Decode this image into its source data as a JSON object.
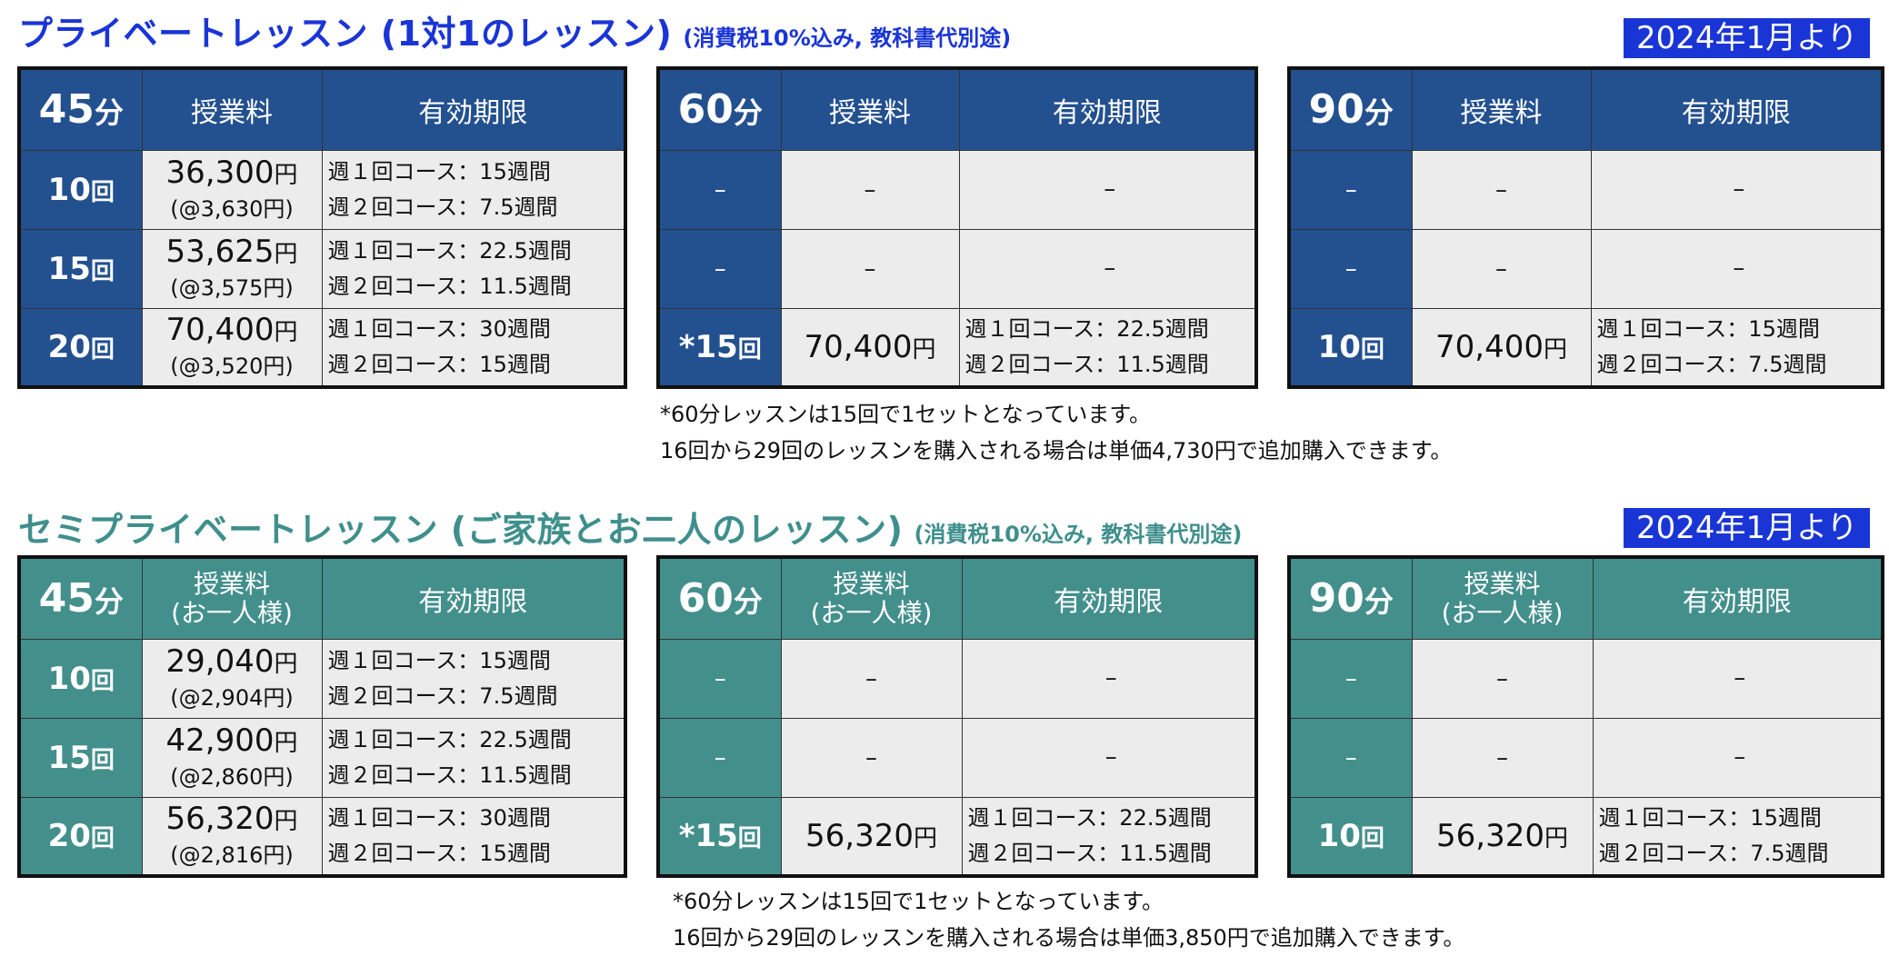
{
  "sections": [
    {
      "title": "プライベートレッスン (1対1のレッスン)",
      "subtitle": "(消費税10%込み, 教科書代別途)",
      "date_badge": "2024年1月より",
      "fee_header": "授業料",
      "fee_header_sub": "",
      "validity_header": "有効期限",
      "tables": [
        {
          "duration": "45",
          "unit": "分",
          "rows": [
            {
              "count": "10",
              "count_unit": "回",
              "fee": "36,300",
              "fee_unit": "円",
              "per": "(@3,630円)",
              "line1": "週１回コース：15週間",
              "line2": "週２回コース：7.5週間"
            },
            {
              "count": "15",
              "count_unit": "回",
              "fee": "53,625",
              "fee_unit": "円",
              "per": "(@3,575円)",
              "line1": "週１回コース：22.5週間",
              "line2": "週２回コース：11.5週間"
            },
            {
              "count": "20",
              "count_unit": "回",
              "fee": "70,400",
              "fee_unit": "円",
              "per": "(@3,520円)",
              "line1": "週１回コース：30週間",
              "line2": "週２回コース：15週間"
            }
          ]
        },
        {
          "duration": "60",
          "unit": "分",
          "rows": [
            {
              "count": "–",
              "count_unit": "",
              "fee": "–",
              "fee_unit": "",
              "per": "",
              "line1": "–",
              "line2": ""
            },
            {
              "count": "–",
              "count_unit": "",
              "fee": "–",
              "fee_unit": "",
              "per": "",
              "line1": "–",
              "line2": ""
            },
            {
              "count": "*15",
              "count_unit": "回",
              "fee": "70,400",
              "fee_unit": "円",
              "per": "",
              "line1": "週１回コース：22.5週間",
              "line2": "週２回コース：11.5週間"
            }
          ]
        },
        {
          "duration": "90",
          "unit": "分",
          "rows": [
            {
              "count": "–",
              "count_unit": "",
              "fee": "–",
              "fee_unit": "",
              "per": "",
              "line1": "–",
              "line2": ""
            },
            {
              "count": "–",
              "count_unit": "",
              "fee": "–",
              "fee_unit": "",
              "per": "",
              "line1": "–",
              "line2": ""
            },
            {
              "count": "10",
              "count_unit": "回",
              "fee": "70,400",
              "fee_unit": "円",
              "per": "",
              "line1": "週１回コース：15週間",
              "line2": "週２回コース：7.5週間"
            }
          ]
        }
      ],
      "note1": "*60分レッスンは15回で1セットとなっています。",
      "note2": "16回から29回のレッスンを購入される場合は単価4,730円で追加購入できます。"
    },
    {
      "title": "セミプライベートレッスン (ご家族とお二人のレッスン)",
      "subtitle": "(消費税10%込み, 教科書代別途)",
      "date_badge": "2024年1月より",
      "fee_header": "授業料",
      "fee_header_sub": "(お一人様)",
      "validity_header": "有効期限",
      "tables": [
        {
          "duration": "45",
          "unit": "分",
          "rows": [
            {
              "count": "10",
              "count_unit": "回",
              "fee": "29,040",
              "fee_unit": "円",
              "per": "(@2,904円)",
              "line1": "週１回コース：15週間",
              "line2": "週２回コース：7.5週間"
            },
            {
              "count": "15",
              "count_unit": "回",
              "fee": "42,900",
              "fee_unit": "円",
              "per": "(@2,860円)",
              "line1": "週１回コース：22.5週間",
              "line2": "週２回コース：11.5週間"
            },
            {
              "count": "20",
              "count_unit": "回",
              "fee": "56,320",
              "fee_unit": "円",
              "per": "(@2,816円)",
              "line1": "週１回コース：30週間",
              "line2": "週２回コース：15週間"
            }
          ]
        },
        {
          "duration": "60",
          "unit": "分",
          "rows": [
            {
              "count": "–",
              "count_unit": "",
              "fee": "–",
              "fee_unit": "",
              "per": "",
              "line1": "–",
              "line2": ""
            },
            {
              "count": "–",
              "count_unit": "",
              "fee": "–",
              "fee_unit": "",
              "per": "",
              "line1": "–",
              "line2": ""
            },
            {
              "count": "*15",
              "count_unit": "回",
              "fee": "56,320",
              "fee_unit": "円",
              "per": "",
              "line1": "週１回コース：22.5週間",
              "line2": "週２回コース：11.5週間"
            }
          ]
        },
        {
          "duration": "90",
          "unit": "分",
          "rows": [
            {
              "count": "–",
              "count_unit": "",
              "fee": "–",
              "fee_unit": "",
              "per": "",
              "line1": "–",
              "line2": ""
            },
            {
              "count": "–",
              "count_unit": "",
              "fee": "–",
              "fee_unit": "",
              "per": "",
              "line1": "–",
              "line2": ""
            },
            {
              "count": "10",
              "count_unit": "回",
              "fee": "56,320",
              "fee_unit": "円",
              "per": "",
              "line1": "週１回コース：15週間",
              "line2": "週２回コース：7.5週間"
            }
          ]
        }
      ],
      "note1": "*60分レッスンは15回で1セットとなっています。",
      "note2": "16回から29回のレッスンを購入される場合は単価3,850円で追加購入できます。"
    }
  ]
}
